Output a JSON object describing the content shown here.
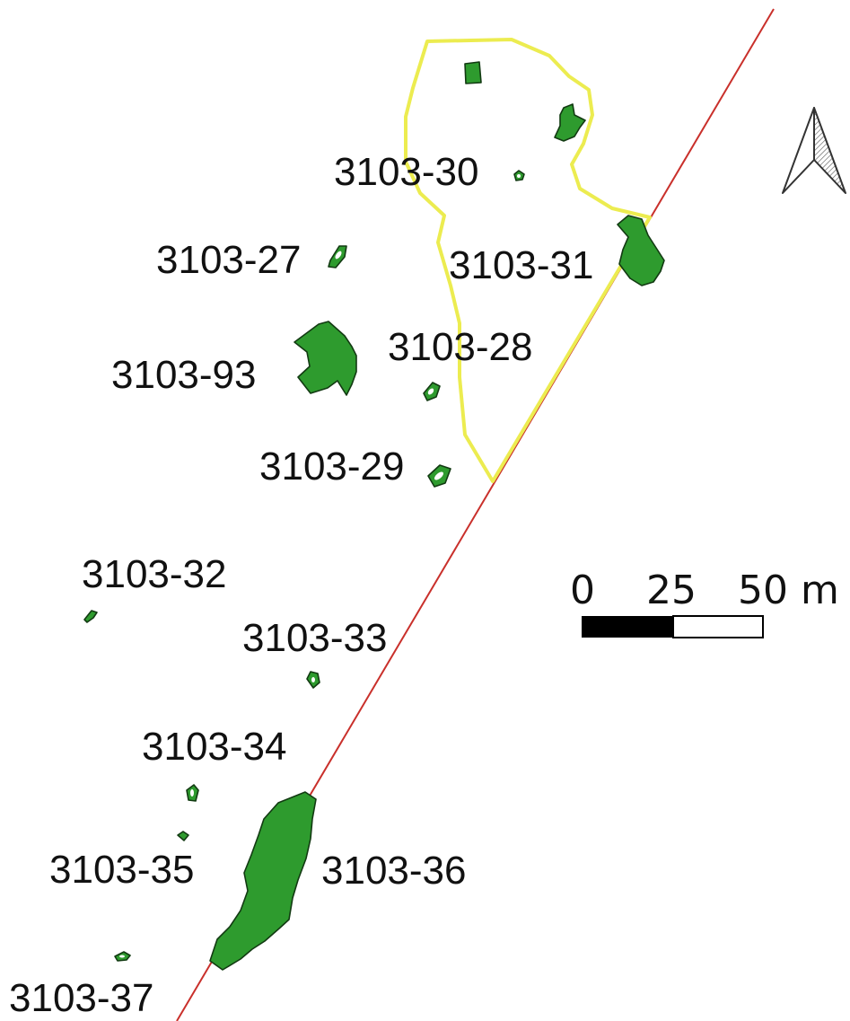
{
  "map": {
    "colors": {
      "site_fill": "#2e9b2e",
      "site_stroke": "#123a12",
      "boundary": "#ecec50",
      "line": "#c9302b",
      "background": "#ffffff"
    },
    "labels": {
      "s27": "3103-27",
      "s28": "3103-28",
      "s29": "3103-29",
      "s30": "3103-30",
      "s31": "3103-31",
      "s32": "3103-32",
      "s33": "3103-33",
      "s34": "3103-34",
      "s35": "3103-35",
      "s36": "3103-36",
      "s37": "3103-37",
      "s93": "3103-93"
    },
    "scale_bar": {
      "tick_0": "0",
      "tick_25": "25",
      "tick_50": "50 m"
    },
    "north_arrow": {
      "icon": "north-arrow-icon"
    }
  }
}
